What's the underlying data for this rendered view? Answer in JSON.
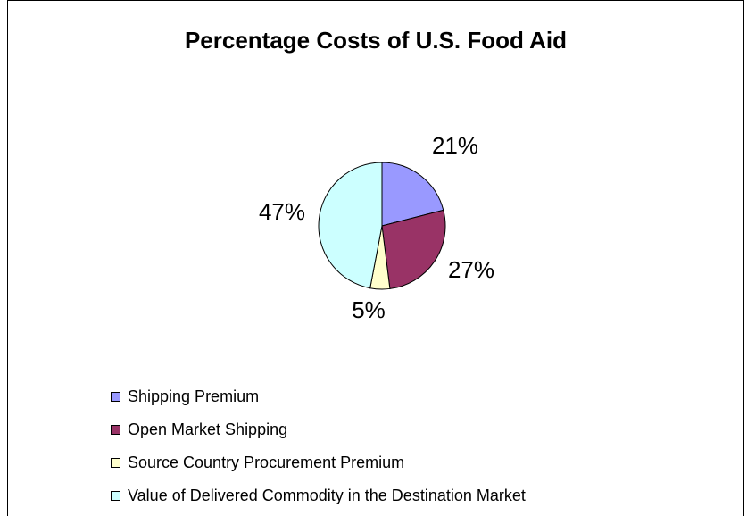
{
  "chart_data": {
    "type": "pie",
    "title": "Percentage Costs of U.S. Food Aid",
    "categories": [
      "Shipping Premium",
      "Open Market Shipping",
      "Source Country Procurement Premium",
      "Value of Delivered Commodity in the Destination Market"
    ],
    "values": [
      21,
      27,
      5,
      47
    ],
    "labels": [
      "21%",
      "27%",
      "5%",
      "47%"
    ],
    "colors": [
      "#9999ff",
      "#993366",
      "#ffffcc",
      "#ccffff"
    ],
    "legend": "bottom-left"
  }
}
